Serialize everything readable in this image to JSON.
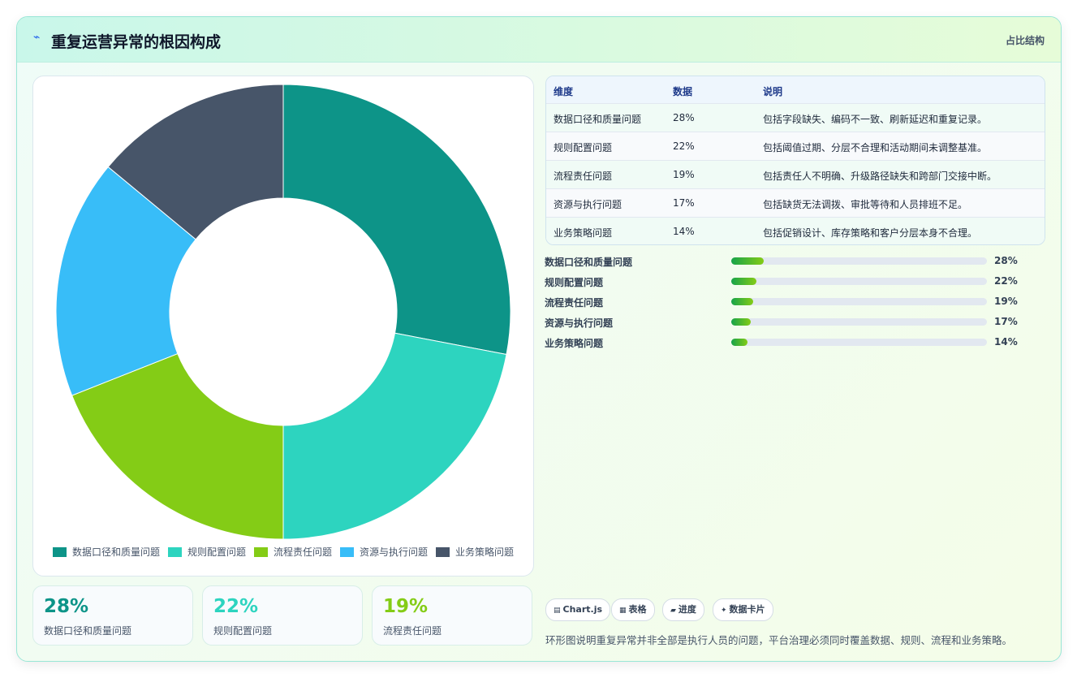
{
  "header": {
    "title": "重复运营异常的根因构成",
    "tag": "占比结构"
  },
  "chart_data": {
    "type": "donut",
    "categories": [
      "数据口径和质量问题",
      "规则配置问题",
      "流程责任问题",
      "资源与执行问题",
      "业务策略问题"
    ],
    "values": [
      28,
      22,
      19,
      17,
      14
    ],
    "value_labels": [
      "28%",
      "22%",
      "19%",
      "17%",
      "14%"
    ],
    "colors": [
      "#0d9488",
      "#2dd4bf",
      "#84cc16",
      "#38bdf8",
      "#475569"
    ],
    "legend": "bottom"
  },
  "table": {
    "columns": [
      "维度",
      "数据",
      "说明"
    ],
    "descriptions": [
      "包括字段缺失、编码不一致、刷新延迟和重复记录。",
      "包括阈值过期、分层不合理和活动期间未调整基准。",
      "包括责任人不明确、升级路径缺失和跨部门交接中断。",
      "包括缺货无法调拨、审批等待和人员排班不足。",
      "包括促销设计、库存策略和客户分层本身不合理。"
    ]
  },
  "chips": [
    "Chart.js",
    "表格",
    "进度",
    "数据卡片"
  ],
  "note": "环形图说明重复异常并非全部是执行人员的问题，平台治理必须同时覆盖数据、规则、流程和业务策略。"
}
